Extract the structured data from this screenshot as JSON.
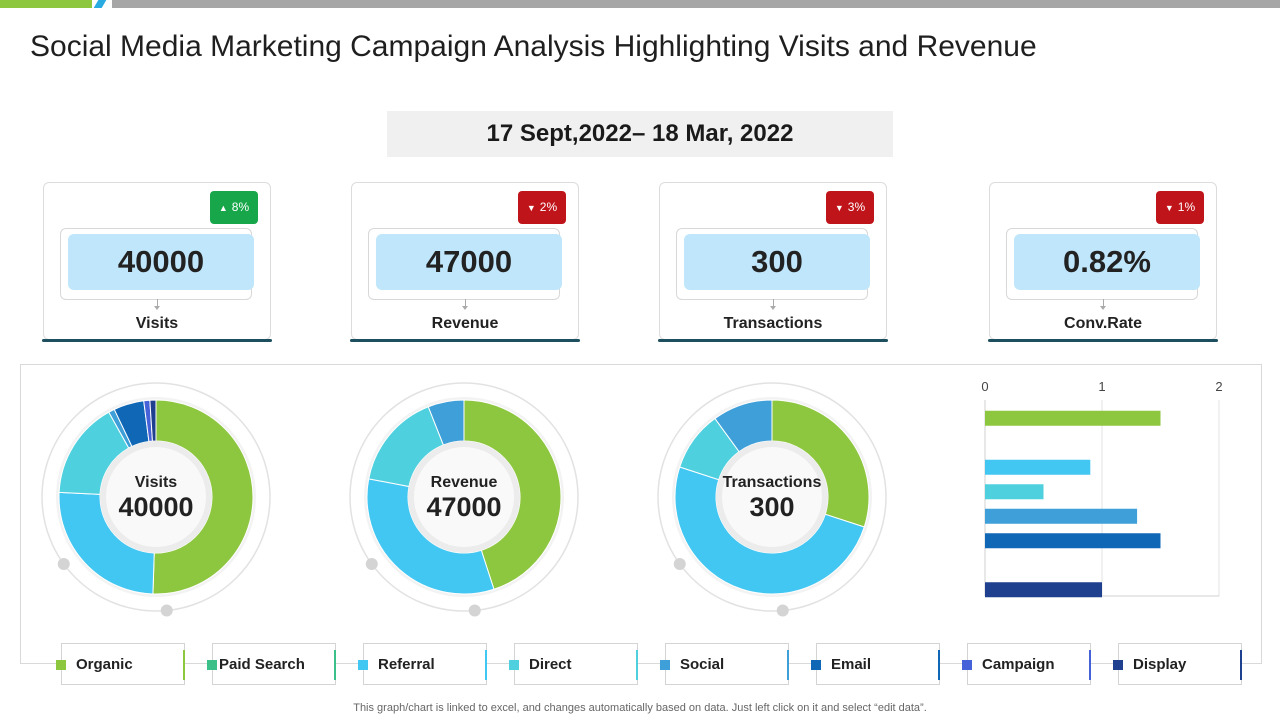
{
  "title": "Social Media Marketing Campaign Analysis Highlighting Visits and Revenue",
  "date_range": "17 Sept,2022– 18 Mar, 2022",
  "colors": {
    "accent_green": "#8dc63f",
    "accent_blue": "#29abe2",
    "badge_up": "#17a74a",
    "badge_down": "#c0141b",
    "kpi_value_bg": "#bfe6fb"
  },
  "kpis": [
    {
      "label": "Visits",
      "value": "40000",
      "change": "8%",
      "direction": "up",
      "icon": "arrow-up-icon"
    },
    {
      "label": "Revenue",
      "value": "47000",
      "change": "2%",
      "direction": "down",
      "icon": "chevron-down-icon"
    },
    {
      "label": "Transactions",
      "value": "300",
      "change": "3%",
      "direction": "down",
      "icon": "chevron-down-icon"
    },
    {
      "label": "Conv.Rate",
      "value": "0.82%",
      "change": "1%",
      "direction": "down",
      "icon": "chevron-down-icon"
    }
  ],
  "legend": [
    {
      "label": "Organic",
      "color": "#8dc63f"
    },
    {
      "label": "Paid Search",
      "color": "#3cc08a"
    },
    {
      "label": "Referral",
      "color": "#42c6f2"
    },
    {
      "label": "Direct",
      "color": "#4fd0de"
    },
    {
      "label": "Social",
      "color": "#3f9fd8"
    },
    {
      "label": "Email",
      "color": "#1067b5"
    },
    {
      "label": "Campaign",
      "color": "#4662d8"
    },
    {
      "label": "Display",
      "color": "#1f3f8f"
    }
  ],
  "chart_data": [
    {
      "type": "pie",
      "variant": "donut",
      "center_label": "Visits",
      "center_value": "40000",
      "categories": [
        "Organic",
        "Paid Search",
        "Referral",
        "Direct",
        "Social",
        "Email",
        "Campaign",
        "Display"
      ],
      "values": [
        50,
        0,
        25,
        16,
        1,
        5,
        1,
        1
      ]
    },
    {
      "type": "pie",
      "variant": "donut",
      "center_label": "Revenue",
      "center_value": "47000",
      "categories": [
        "Organic",
        "Paid Search",
        "Referral",
        "Direct",
        "Social",
        "Email",
        "Campaign",
        "Display"
      ],
      "values": [
        45,
        0,
        33,
        16,
        6,
        0,
        0,
        0
      ]
    },
    {
      "type": "pie",
      "variant": "donut",
      "center_label": "Transactions",
      "center_value": "300",
      "categories": [
        "Organic",
        "Paid Search",
        "Referral",
        "Direct",
        "Social",
        "Email",
        "Campaign",
        "Display"
      ],
      "values": [
        30,
        0,
        50,
        10,
        10,
        0,
        0,
        0
      ]
    },
    {
      "type": "bar",
      "orientation": "horizontal",
      "categories": [
        "Organic",
        "Paid Search",
        "Referral",
        "Direct",
        "Social",
        "Email",
        "Campaign",
        "Display"
      ],
      "values": [
        1.5,
        0,
        0.9,
        0.5,
        1.3,
        1.5,
        0,
        1.0
      ],
      "xlim": [
        0,
        2
      ],
      "xticks": [
        "0",
        "1",
        "2"
      ],
      "grid": true
    }
  ],
  "footer": "This graph/chart is linked to excel,  and changes automatically based on data. Just left click on it and select “edit data”."
}
